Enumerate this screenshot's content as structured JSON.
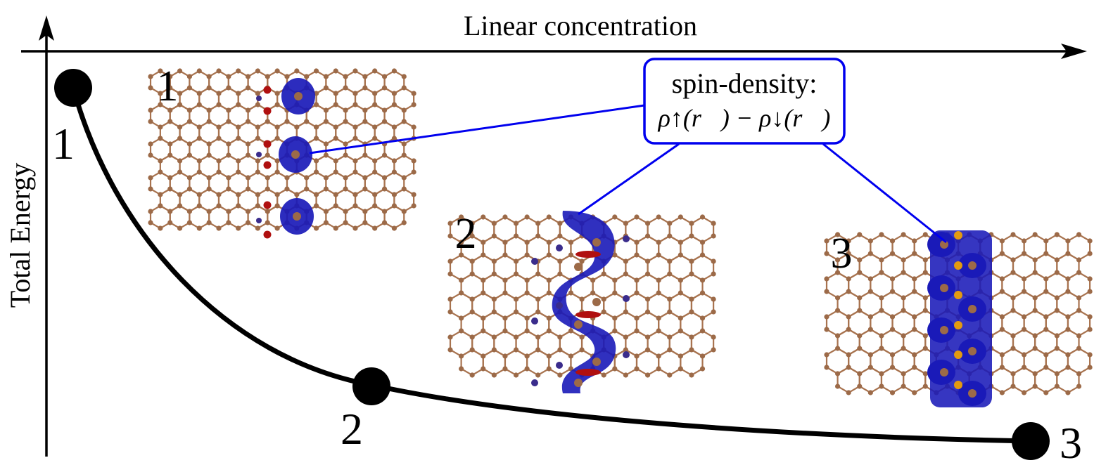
{
  "axes": {
    "x_label": "Linear concentration",
    "y_label": "Total Energy"
  },
  "points": [
    {
      "label": "1"
    },
    {
      "label": "2"
    },
    {
      "label": "3"
    }
  ],
  "insets": [
    {
      "label": "1"
    },
    {
      "label": "2"
    },
    {
      "label": "3"
    }
  ],
  "callout": {
    "title": "spin-density:",
    "formula": "ρ↑(r⃗) − ρ↓(r⃗)"
  },
  "colors": {
    "axis": "#000000",
    "curve": "#000000",
    "bond": "#a8734f",
    "atom": "#9c6a48",
    "spin_density": "#1a1ab8",
    "oxygen": "#b01010",
    "boron": "#3a2c8c",
    "dopant": "#e39a10",
    "callout_border": "#0000ee"
  }
}
